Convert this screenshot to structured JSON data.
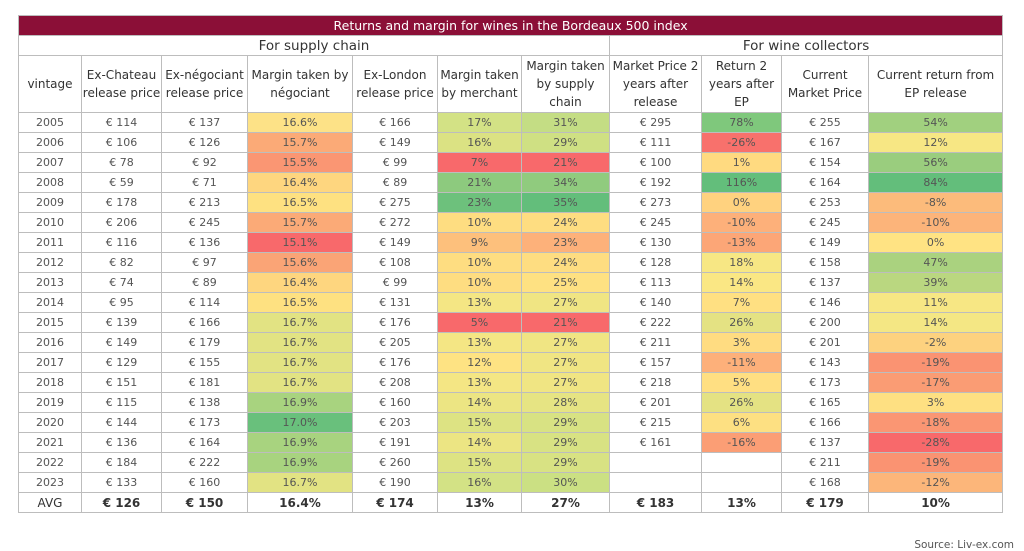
{
  "title": "Returns and margin for wines in the Bordeaux 500 index",
  "groups": [
    "For supply chain",
    "For wine collectors"
  ],
  "headers": [
    "vintage",
    "Ex-Chateau release price",
    "Ex-négociant release price",
    "Margin taken by négociant",
    "Ex-London release price",
    "Margin taken by merchant",
    "Margin taken by supply chain",
    "Market Price 2 years after release",
    "Return 2 years after EP",
    "Current Market Price",
    "Current return from EP release"
  ],
  "rows": [
    [
      "2005",
      "€ 114",
      "€ 137",
      "16.6%",
      "€ 166",
      "17%",
      "31%",
      "€ 295",
      "78%",
      "€ 255",
      "54%"
    ],
    [
      "2006",
      "€ 106",
      "€ 126",
      "15.7%",
      "€ 149",
      "16%",
      "29%",
      "€ 111",
      "-26%",
      "€ 167",
      "12%"
    ],
    [
      "2007",
      "€ 78",
      "€ 92",
      "15.5%",
      "€ 99",
      "7%",
      "21%",
      "€ 100",
      "1%",
      "€ 154",
      "56%"
    ],
    [
      "2008",
      "€ 59",
      "€ 71",
      "16.4%",
      "€ 89",
      "21%",
      "34%",
      "€ 192",
      "116%",
      "€ 164",
      "84%"
    ],
    [
      "2009",
      "€ 178",
      "€ 213",
      "16.5%",
      "€ 275",
      "23%",
      "35%",
      "€ 273",
      "0%",
      "€ 253",
      "-8%"
    ],
    [
      "2010",
      "€ 206",
      "€ 245",
      "15.7%",
      "€ 272",
      "10%",
      "24%",
      "€ 245",
      "-10%",
      "€ 245",
      "-10%"
    ],
    [
      "2011",
      "€ 116",
      "€ 136",
      "15.1%",
      "€ 149",
      "9%",
      "23%",
      "€ 130",
      "-13%",
      "€ 149",
      "0%"
    ],
    [
      "2012",
      "€ 82",
      "€ 97",
      "15.6%",
      "€ 108",
      "10%",
      "24%",
      "€ 128",
      "18%",
      "€ 158",
      "47%"
    ],
    [
      "2013",
      "€ 74",
      "€ 89",
      "16.4%",
      "€ 99",
      "10%",
      "25%",
      "€ 113",
      "14%",
      "€ 137",
      "39%"
    ],
    [
      "2014",
      "€ 95",
      "€ 114",
      "16.5%",
      "€ 131",
      "13%",
      "27%",
      "€ 140",
      "7%",
      "€ 146",
      "11%"
    ],
    [
      "2015",
      "€ 139",
      "€ 166",
      "16.7%",
      "€ 176",
      "5%",
      "21%",
      "€ 222",
      "26%",
      "€ 200",
      "14%"
    ],
    [
      "2016",
      "€ 149",
      "€ 179",
      "16.7%",
      "€ 205",
      "13%",
      "27%",
      "€ 211",
      "3%",
      "€ 201",
      "-2%"
    ],
    [
      "2017",
      "€ 129",
      "€ 155",
      "16.7%",
      "€ 176",
      "12%",
      "27%",
      "€ 157",
      "-11%",
      "€ 143",
      "-19%"
    ],
    [
      "2018",
      "€ 151",
      "€ 181",
      "16.7%",
      "€ 208",
      "13%",
      "27%",
      "€ 218",
      "5%",
      "€ 173",
      "-17%"
    ],
    [
      "2019",
      "€ 115",
      "€ 138",
      "16.9%",
      "€ 160",
      "14%",
      "28%",
      "€ 201",
      "26%",
      "€ 165",
      "3%"
    ],
    [
      "2020",
      "€ 144",
      "€ 173",
      "17.0%",
      "€ 203",
      "15%",
      "29%",
      "€ 215",
      "6%",
      "€ 166",
      "-18%"
    ],
    [
      "2021",
      "€ 136",
      "€ 164",
      "16.9%",
      "€ 191",
      "14%",
      "29%",
      "€ 161",
      "-16%",
      "€ 137",
      "-28%"
    ],
    [
      "2022",
      "€ 184",
      "€ 222",
      "16.9%",
      "€ 260",
      "15%",
      "29%",
      "",
      "",
      "€ 211",
      "-19%"
    ],
    [
      "2023",
      "€ 133",
      "€ 160",
      "16.7%",
      "€ 190",
      "16%",
      "30%",
      "",
      "",
      "€ 168",
      "-12%"
    ]
  ],
  "avg": [
    "AVG",
    "€ 126",
    "€ 150",
    "16.4%",
    "€ 174",
    "13%",
    "27%",
    "€ 183",
    "13%",
    "€ 179",
    "10%"
  ],
  "cell_colors": [
    [
      null,
      null,
      null,
      "#fde287",
      null,
      "#d3e285",
      "#c4dd84",
      null,
      "#7fc87c",
      null,
      "#a1d07f"
    ],
    [
      null,
      null,
      null,
      "#fbaa77",
      null,
      "#dbe283",
      "#cfe083",
      null,
      "#f8716c",
      null,
      "#f7e784"
    ],
    [
      null,
      null,
      null,
      "#fa9673",
      null,
      "#f8696b",
      "#f8696b",
      null,
      "#ffda80",
      null,
      "#9acd7e"
    ],
    [
      null,
      null,
      null,
      "#fed67f",
      null,
      "#8dca7e",
      "#90cb7e",
      null,
      "#63be7b",
      null,
      "#63be7b"
    ],
    [
      null,
      null,
      null,
      "#fee181",
      null,
      "#6dc17c",
      "#63be7b",
      null,
      "#ffd27f",
      null,
      "#fcbb7b"
    ],
    [
      null,
      null,
      null,
      "#fbaa77",
      null,
      "#fedd81",
      "#fedd81",
      null,
      "#fdb07a",
      null,
      "#fcb47a"
    ],
    [
      null,
      null,
      null,
      "#f8696b",
      null,
      "#fdc07c",
      "#fdb17a",
      null,
      "#fca677",
      null,
      "#ffe383"
    ],
    [
      null,
      null,
      null,
      "#faa476",
      null,
      "#fedd81",
      "#fedd81",
      null,
      "#f7e784",
      null,
      "#aad27f"
    ],
    [
      null,
      null,
      null,
      "#fed67f",
      null,
      "#fedd81",
      "#fee182",
      null,
      "#fae784",
      null,
      "#bad780"
    ],
    [
      null,
      null,
      null,
      "#fee181",
      null,
      "#f4e684",
      "#f0e583",
      null,
      "#ffe082",
      null,
      "#f7e784"
    ],
    [
      null,
      null,
      null,
      "#e2e383",
      null,
      "#f8696b",
      "#f8696b",
      null,
      "#e4e283",
      null,
      "#f4e784"
    ],
    [
      null,
      null,
      null,
      "#e2e383",
      null,
      "#f4e684",
      "#f0e583",
      null,
      "#ffdc81",
      null,
      "#fdd27f"
    ],
    [
      null,
      null,
      null,
      "#e2e383",
      null,
      "#fee383",
      "#f0e583",
      null,
      "#fdb07a",
      null,
      "#fa9372"
    ],
    [
      null,
      null,
      null,
      "#e2e383",
      null,
      "#f4e684",
      "#f0e583",
      null,
      "#ffdf82",
      null,
      "#fa9c74"
    ],
    [
      null,
      null,
      null,
      "#a8d37f",
      null,
      "#ece583",
      "#e6e483",
      null,
      "#e4e283",
      null,
      "#fee082"
    ],
    [
      null,
      null,
      null,
      "#69c07c",
      null,
      "#dde383",
      "#d8e283",
      null,
      "#fde082",
      null,
      "#fa9673"
    ],
    [
      null,
      null,
      null,
      "#a8d37f",
      null,
      "#ece583",
      "#d8e283",
      null,
      "#fb9e75",
      null,
      "#f8696b"
    ],
    [
      null,
      null,
      null,
      "#a8d37f",
      null,
      "#dde383",
      "#d8e283",
      null,
      null,
      null,
      "#fa9372"
    ],
    [
      null,
      null,
      null,
      "#e2e383",
      null,
      "#d3e285",
      "#cbe083",
      null,
      null,
      null,
      "#fcb67a"
    ]
  ],
  "source": "Source: Liv-ex.com"
}
